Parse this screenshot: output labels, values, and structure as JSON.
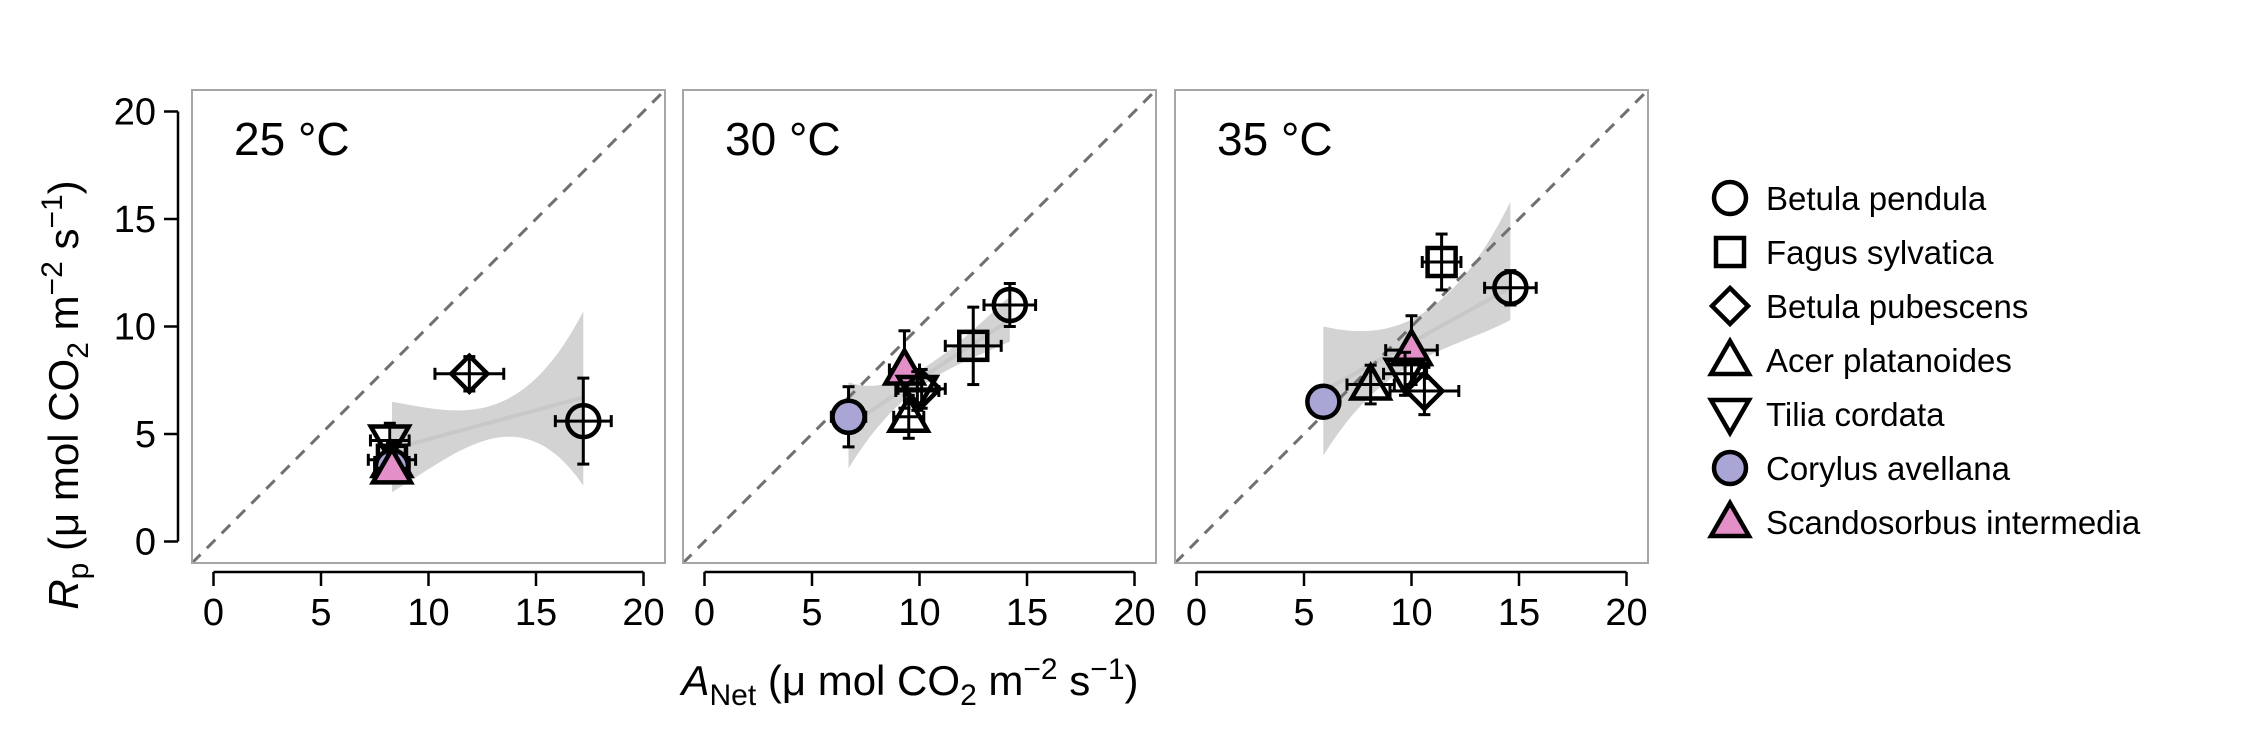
{
  "chart_data": {
    "type": "scatter",
    "panels": [
      {
        "label": "25 °C",
        "points": [
          {
            "species": "Betula pendula",
            "x": 17.2,
            "y": 5.6,
            "xerr": 1.3,
            "yerr": 2.0
          },
          {
            "species": "Betula pubescens",
            "x": 11.9,
            "y": 7.8,
            "xerr": 1.6,
            "yerr": 0.8
          },
          {
            "species": "Fagus sylvatica",
            "x": 8.3,
            "y": 3.8,
            "xerr": 1.1,
            "yerr": 0.8
          },
          {
            "species": "Tilia cordata",
            "x": 8.2,
            "y": 4.7,
            "xerr": 0.9,
            "yerr": 0.8
          },
          {
            "species": "Acer platanoides",
            "x": 8.3,
            "y": 3.7,
            "xerr": 0.8,
            "yerr": 0.6
          },
          {
            "species": "Corylus avellana",
            "x": 8.3,
            "y": 3.5,
            "xerr": 0.8,
            "yerr": 0.6
          },
          {
            "species": "Scandosorbus intermedia",
            "x": 8.3,
            "y": 3.4,
            "xerr": 0.8,
            "yerr": 0.6
          }
        ],
        "fit": {
          "x": [
            8.3,
            17.2
          ],
          "y": [
            4.3,
            6.7
          ],
          "ci_lower": [
            2.3,
            2.6
          ],
          "ci_upper": [
            6.5,
            10.7
          ]
        }
      },
      {
        "label": "30 °C",
        "points": [
          {
            "species": "Betula pendula",
            "x": 14.2,
            "y": 11.0,
            "xerr": 1.2,
            "yerr": 1.0
          },
          {
            "species": "Fagus sylvatica",
            "x": 12.5,
            "y": 9.1,
            "xerr": 1.3,
            "yerr": 1.8
          },
          {
            "species": "Corylus avellana",
            "x": 6.7,
            "y": 5.8,
            "xerr": 0.8,
            "yerr": 1.4
          },
          {
            "species": "Scandosorbus intermedia",
            "x": 9.3,
            "y": 8.0,
            "xerr": 0.7,
            "yerr": 1.8
          },
          {
            "species": "Betula pubescens",
            "x": 10.1,
            "y": 7.1,
            "xerr": 1.1,
            "yerr": 0.9
          },
          {
            "species": "Tilia cordata",
            "x": 9.9,
            "y": 7.0,
            "xerr": 1.0,
            "yerr": 0.9
          },
          {
            "species": "Acer platanoides",
            "x": 9.5,
            "y": 5.8,
            "xerr": 0.7,
            "yerr": 1.0
          }
        ],
        "fit": {
          "x": [
            6.7,
            14.2
          ],
          "y": [
            5.4,
            10.3
          ],
          "ci_lower": [
            3.4,
            9.3
          ],
          "ci_upper": [
            7.4,
            11.4
          ]
        }
      },
      {
        "label": "35 °C",
        "points": [
          {
            "species": "Betula pendula",
            "x": 14.6,
            "y": 11.8,
            "xerr": 1.2,
            "yerr": 0.8
          },
          {
            "species": "Fagus sylvatica",
            "x": 11.4,
            "y": 13.0,
            "xerr": 0.9,
            "yerr": 1.3
          },
          {
            "species": "Corylus avellana",
            "x": 5.9,
            "y": 6.5,
            "xerr": 0.7,
            "yerr": 0.7
          },
          {
            "species": "Acer platanoides",
            "x": 8.1,
            "y": 7.3,
            "xerr": 1.1,
            "yerr": 0.9
          },
          {
            "species": "Scandosorbus intermedia",
            "x": 10.0,
            "y": 8.9,
            "xerr": 1.2,
            "yerr": 1.6
          },
          {
            "species": "Tilia cordata",
            "x": 9.7,
            "y": 7.8,
            "xerr": 1.0,
            "yerr": 1.0
          },
          {
            "species": "Betula pubescens",
            "x": 10.6,
            "y": 7.0,
            "xerr": 1.6,
            "yerr": 1.1
          }
        ],
        "fit": {
          "x": [
            5.9,
            14.6
          ],
          "y": [
            7.0,
            11.8
          ],
          "ci_lower": [
            4.0,
            10.3
          ],
          "ci_upper": [
            10.0,
            15.8
          ]
        }
      }
    ],
    "series": [
      {
        "name": "Betula pendula",
        "marker": "circle",
        "fill": "none"
      },
      {
        "name": "Fagus sylvatica",
        "marker": "square",
        "fill": "none"
      },
      {
        "name": "Betula pubescens",
        "marker": "diamond",
        "fill": "none"
      },
      {
        "name": "Acer platanoides",
        "marker": "triangle-up",
        "fill": "none"
      },
      {
        "name": "Tilia cordata",
        "marker": "triangle-down",
        "fill": "none"
      },
      {
        "name": "Corylus avellana",
        "marker": "circle",
        "fill": "#a9a6d6"
      },
      {
        "name": "Scandosorbus intermedia",
        "marker": "triangle-up",
        "fill": "#e38fc8"
      }
    ],
    "xlim": [
      -1,
      21
    ],
    "ylim": [
      -1,
      21
    ],
    "xticks": [
      0,
      5,
      10,
      15,
      20
    ],
    "yticks": [
      0,
      5,
      10,
      15,
      20
    ],
    "reference_line": "1:1",
    "xlabel": {
      "symbol": "A",
      "subscript": "Net",
      "rest": " (μ mol  CO",
      "sub2": "2",
      "rest2": "  m",
      "sup": "−2",
      "rest3": " s",
      "sup2": "−1",
      "rest4": ")"
    },
    "ylabel": {
      "symbol": "R",
      "subscript": "p",
      "rest": " (μ mol  CO",
      "sub2": "2",
      "rest2": "  m",
      "sup": "−2",
      "rest3": " s",
      "sup2": "−1",
      "rest4": ")"
    },
    "legend_position": "right",
    "colors": {
      "ci_band": "#d3d3d3",
      "fit_line": "#c8c8c8",
      "reference_line": "#707070",
      "frame": "#a6a6a6"
    }
  }
}
